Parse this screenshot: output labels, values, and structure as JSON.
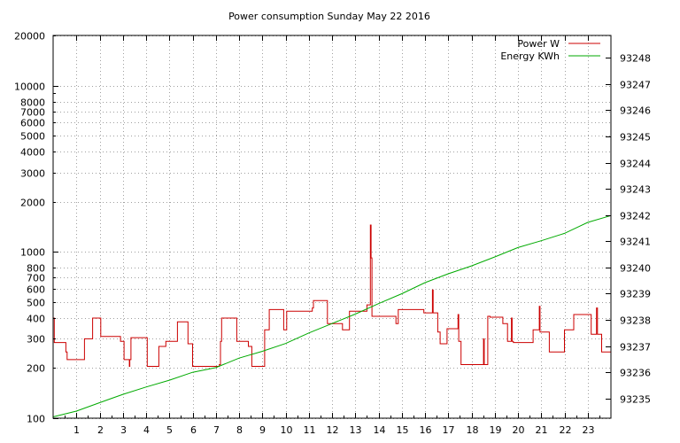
{
  "chart_data": {
    "type": "line",
    "title": "Power consumption Sunday May 22 2016",
    "xlim": [
      0,
      24
    ],
    "x_ticks": [
      1,
      2,
      3,
      4,
      5,
      6,
      7,
      8,
      9,
      10,
      11,
      12,
      13,
      14,
      15,
      16,
      17,
      18,
      19,
      20,
      21,
      22,
      23
    ],
    "y_left": {
      "scale": "log",
      "ylim": [
        100,
        20000
      ],
      "ticks": [
        100,
        200,
        300,
        400,
        500,
        600,
        700,
        800,
        1000,
        2000,
        3000,
        4000,
        5000,
        6000,
        7000,
        8000,
        10000,
        20000
      ],
      "tick_labels": [
        "100",
        "200",
        "300",
        "400",
        "500",
        "600",
        "700",
        "800",
        "1000",
        "2000",
        "3000",
        "4000",
        "5000",
        "6000",
        "7000",
        "8000",
        "10000",
        "20000"
      ]
    },
    "y_right": {
      "scale": "linear",
      "ylim": [
        93234.25,
        93248.85
      ],
      "ticks": [
        93235,
        93236,
        93237,
        93238,
        93239,
        93240,
        93241,
        93242,
        93243,
        93244,
        93245,
        93246,
        93247,
        93248
      ],
      "tick_labels": [
        "93235",
        "93236",
        "93237",
        "93238",
        "93239",
        "93240",
        "93241",
        "93242",
        "93243",
        "93244",
        "93245",
        "93246",
        "93247",
        "93248"
      ]
    },
    "grid": true,
    "legend_position": "top-right",
    "series": [
      {
        "name": "Power W",
        "color": "#cc0000",
        "axis": "left",
        "style": "step",
        "points": [
          [
            0,
            400
          ],
          [
            0.05,
            285
          ],
          [
            0.5,
            285
          ],
          [
            0.55,
            250
          ],
          [
            0.6,
            225
          ],
          [
            1.3,
            225
          ],
          [
            1.35,
            300
          ],
          [
            1.65,
            300
          ],
          [
            1.7,
            400
          ],
          [
            2.0,
            400
          ],
          [
            2.05,
            310
          ],
          [
            2.85,
            310
          ],
          [
            2.9,
            290
          ],
          [
            3.0,
            290
          ],
          [
            3.05,
            225
          ],
          [
            3.25,
            225
          ],
          [
            3.28,
            205
          ],
          [
            3.3,
            225
          ],
          [
            3.35,
            305
          ],
          [
            4.0,
            305
          ],
          [
            4.05,
            205
          ],
          [
            4.5,
            205
          ],
          [
            4.55,
            270
          ],
          [
            4.8,
            270
          ],
          [
            4.85,
            290
          ],
          [
            5.3,
            290
          ],
          [
            5.35,
            380
          ],
          [
            5.75,
            380
          ],
          [
            5.8,
            280
          ],
          [
            5.95,
            280
          ],
          [
            6.0,
            205
          ],
          [
            7.1,
            205
          ],
          [
            7.15,
            210
          ],
          [
            7.2,
            290
          ],
          [
            7.25,
            400
          ],
          [
            7.85,
            400
          ],
          [
            7.9,
            290
          ],
          [
            8.35,
            290
          ],
          [
            8.4,
            270
          ],
          [
            8.5,
            270
          ],
          [
            8.55,
            205
          ],
          [
            9.05,
            205
          ],
          [
            9.1,
            340
          ],
          [
            9.25,
            340
          ],
          [
            9.3,
            450
          ],
          [
            9.9,
            450
          ],
          [
            9.92,
            340
          ],
          [
            10.0,
            340
          ],
          [
            10.05,
            440
          ],
          [
            11.1,
            440
          ],
          [
            11.15,
            460
          ],
          [
            11.2,
            510
          ],
          [
            11.75,
            510
          ],
          [
            11.8,
            370
          ],
          [
            12.4,
            370
          ],
          [
            12.45,
            340
          ],
          [
            12.7,
            340
          ],
          [
            12.75,
            440
          ],
          [
            13.45,
            440
          ],
          [
            13.5,
            480
          ],
          [
            13.6,
            480
          ],
          [
            13.65,
            1450
          ],
          [
            13.68,
            920
          ],
          [
            13.72,
            410
          ],
          [
            14.7,
            410
          ],
          [
            14.75,
            370
          ],
          [
            14.8,
            370
          ],
          [
            14.85,
            450
          ],
          [
            15.9,
            450
          ],
          [
            15.95,
            430
          ],
          [
            16.3,
            430
          ],
          [
            16.32,
            590
          ],
          [
            16.35,
            430
          ],
          [
            16.5,
            430
          ],
          [
            16.55,
            330
          ],
          [
            16.6,
            330
          ],
          [
            16.65,
            280
          ],
          [
            16.9,
            280
          ],
          [
            16.95,
            345
          ],
          [
            17.4,
            345
          ],
          [
            17.42,
            420
          ],
          [
            17.45,
            290
          ],
          [
            17.5,
            290
          ],
          [
            17.55,
            210
          ],
          [
            18.5,
            210
          ],
          [
            18.52,
            300
          ],
          [
            18.55,
            210
          ],
          [
            18.65,
            210
          ],
          [
            18.7,
            410
          ],
          [
            18.75,
            410
          ],
          [
            18.8,
            405
          ],
          [
            19.3,
            405
          ],
          [
            19.35,
            370
          ],
          [
            19.5,
            370
          ],
          [
            19.55,
            290
          ],
          [
            19.7,
            290
          ],
          [
            19.72,
            400
          ],
          [
            19.75,
            290
          ],
          [
            19.8,
            285
          ],
          [
            20.6,
            285
          ],
          [
            20.65,
            340
          ],
          [
            20.9,
            340
          ],
          [
            20.92,
            470
          ],
          [
            20.95,
            330
          ],
          [
            21.3,
            330
          ],
          [
            21.35,
            250
          ],
          [
            21.95,
            250
          ],
          [
            22.0,
            340
          ],
          [
            22.35,
            340
          ],
          [
            22.4,
            420
          ],
          [
            23.1,
            420
          ],
          [
            23.15,
            320
          ],
          [
            23.35,
            320
          ],
          [
            23.38,
            460
          ],
          [
            23.42,
            320
          ],
          [
            23.55,
            320
          ],
          [
            23.6,
            250
          ],
          [
            24.0,
            250
          ]
        ]
      },
      {
        "name": "Energy KWh",
        "color": "#00aa00",
        "axis": "right",
        "style": "line",
        "points": [
          [
            0,
            93234.3
          ],
          [
            1.0,
            93234.52
          ],
          [
            2.0,
            93234.84
          ],
          [
            3.0,
            93235.16
          ],
          [
            4.0,
            93235.44
          ],
          [
            5.0,
            93235.7
          ],
          [
            6.0,
            93236.0
          ],
          [
            7.0,
            93236.18
          ],
          [
            8.0,
            93236.54
          ],
          [
            9.0,
            93236.8
          ],
          [
            10.0,
            93237.1
          ],
          [
            11.0,
            93237.5
          ],
          [
            12.0,
            93237.86
          ],
          [
            13.0,
            93238.22
          ],
          [
            14.0,
            93238.62
          ],
          [
            15.0,
            93239.0
          ],
          [
            16.0,
            93239.42
          ],
          [
            17.0,
            93239.76
          ],
          [
            18.0,
            93240.06
          ],
          [
            19.0,
            93240.4
          ],
          [
            20.0,
            93240.76
          ],
          [
            21.0,
            93241.02
          ],
          [
            22.0,
            93241.3
          ],
          [
            23.0,
            93241.72
          ],
          [
            24.0,
            93241.98
          ]
        ]
      }
    ]
  }
}
